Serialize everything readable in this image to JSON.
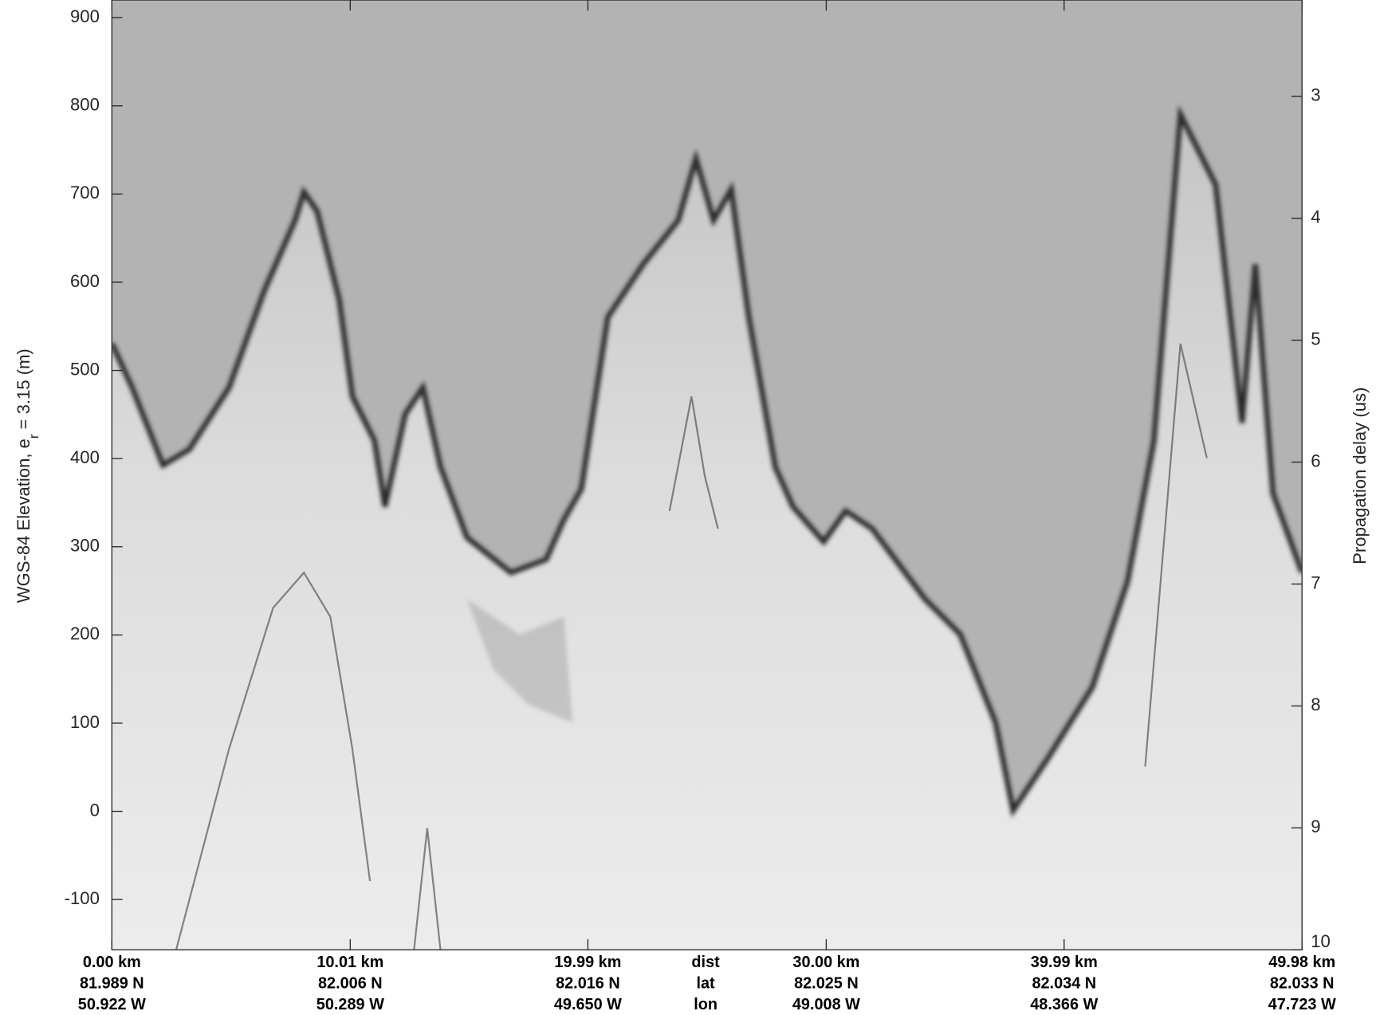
{
  "chart_data": {
    "type": "radargram",
    "y_label": {
      "main": "WGS-84 Elevation, e",
      "sub": "r",
      "tail": " = 3.15 (m)"
    },
    "y2_label": "Propagation delay (us)",
    "ylim": [
      -157,
      920
    ],
    "yticks": [
      -100,
      0,
      100,
      200,
      300,
      400,
      500,
      600,
      700,
      800,
      900
    ],
    "y2lim": [
      10,
      2.21
    ],
    "y2ticks": [
      3,
      4,
      5,
      6,
      7,
      8,
      9,
      10
    ],
    "xlim": [
      0,
      49.98
    ],
    "xticks": [
      {
        "value": 0,
        "label": "0.00 km",
        "lat": "81.989 N",
        "lon": "50.922 W"
      },
      {
        "value": 10.01,
        "label": "10.01 km",
        "lat": "82.006 N",
        "lon": "50.289 W"
      },
      {
        "value": 19.99,
        "label": "19.99 km",
        "lat": "82.016 N",
        "lon": "49.650 W"
      },
      {
        "value": 30,
        "label": "30.00 km",
        "lat": "82.025 N",
        "lon": "49.008 W"
      },
      {
        "value": 39.99,
        "label": "39.99 km",
        "lat": "82.034 N",
        "lon": "48.366 W"
      },
      {
        "value": 49.98,
        "label": "49.98 km",
        "lat": "82.033 N",
        "lon": "47.723 W"
      }
    ],
    "row_labels": [
      "dist",
      "lat",
      "lon"
    ]
  }
}
